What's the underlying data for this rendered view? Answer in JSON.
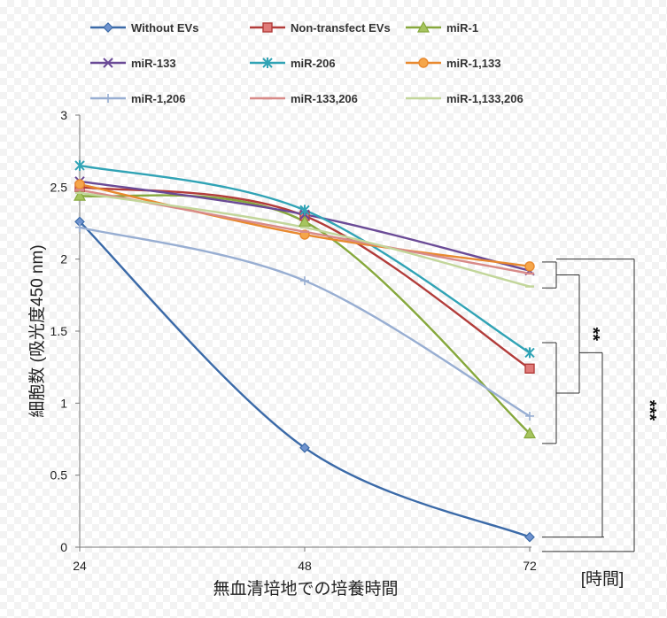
{
  "chart_data": {
    "type": "line",
    "x": [
      24,
      48,
      72
    ],
    "xlim": [
      24,
      72
    ],
    "ylim": [
      0,
      3
    ],
    "y_ticks": [
      "0",
      "0.5",
      "1",
      "1.5",
      "2",
      "2.5",
      "3"
    ],
    "x_ticks": [
      "24",
      "48",
      "72"
    ],
    "xlabel": "無血清培地での培養時間",
    "ylabel": "細胞数 (吸光度450 nm)",
    "x_unit_label": "[時間]",
    "grid": false,
    "legend_position": "top",
    "series": [
      {
        "name": "Without EVs",
        "values": [
          2.26,
          0.69,
          0.07
        ],
        "color": "#3b6aa8",
        "marker": "diamond"
      },
      {
        "name": "Non-transfect EVs",
        "values": [
          2.5,
          2.3,
          1.24
        ],
        "color": "#b23c3a",
        "marker": "square"
      },
      {
        "name": "miR-1",
        "values": [
          2.44,
          2.26,
          0.79
        ],
        "color": "#86a83c",
        "marker": "triangle"
      },
      {
        "name": "miR-133",
        "values": [
          2.54,
          2.31,
          1.92
        ],
        "color": "#6a4a96",
        "marker": "x"
      },
      {
        "name": "miR-206",
        "values": [
          2.65,
          2.34,
          1.35
        ],
        "color": "#30a3b5",
        "marker": "star"
      },
      {
        "name": "miR-1,133",
        "values": [
          2.52,
          2.17,
          1.95
        ],
        "color": "#e8892f",
        "marker": "circle"
      },
      {
        "name": "miR-1,206",
        "values": [
          2.22,
          1.85,
          0.91
        ],
        "color": "#98aed2",
        "marker": "plus"
      },
      {
        "name": "miR-133,206",
        "values": [
          2.48,
          2.19,
          1.9
        ],
        "color": "#d88a88",
        "marker": "dash"
      },
      {
        "name": "miR-1,133,206",
        "values": [
          2.46,
          2.22,
          1.81
        ],
        "color": "#c2d69a",
        "marker": "dash"
      }
    ],
    "annotations": [
      {
        "label": "**",
        "group_a": "miR-133, miR-1,133, miR-133,206, miR-1,133,206",
        "group_b": "Non-transfect EVs, miR-1, miR-206, miR-1,206"
      },
      {
        "label": "***",
        "group_a": "miR-133, miR-1,133, miR-133,206, miR-1,133,206",
        "group_b": "Without EVs"
      }
    ]
  }
}
